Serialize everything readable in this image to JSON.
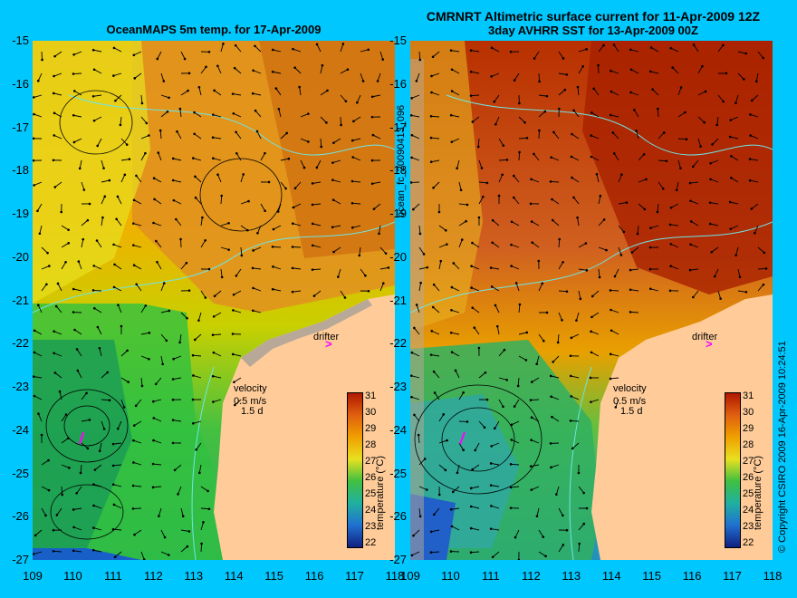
{
  "left_panel": {
    "title": "OceanMAPS 5m temp. for 17-Apr-2009",
    "velocity_label": "velocity",
    "velocity_scale": "0.5 m/s",
    "velocity_time": "1.5 d",
    "drifter_label": "drifter",
    "colorbar_label": "temperature (°C)"
  },
  "right_panel": {
    "title_line1": "CMRNRT Altimetric surface current for 11-Apr-2009 12Z",
    "title_line2": "3day AVHRR SST for 13-Apr-2009 00Z",
    "velocity_label": "velocity",
    "velocity_scale": "0.5 m/s",
    "velocity_time": "1.5 d",
    "drifter_label": "drifter",
    "colorbar_label": "temperature (°C)"
  },
  "side_label": "ocean_fc_20090413_096",
  "copyright": "© Copyright CSIRO 2009   16-Apr-2009 10:24:51",
  "colors": {
    "background": "#00c8ff",
    "land": "#ffcc99",
    "coast_grey": "#b8a898",
    "drifter": "#ff00ff",
    "bathymetry": "#6ee6e6"
  },
  "chart_data": {
    "type": "heatmap",
    "y_ticks": [
      "-15",
      "-16",
      "-17",
      "-18",
      "-19",
      "-20",
      "-21",
      "-22",
      "-23",
      "-24",
      "-25",
      "-26",
      "-27"
    ],
    "x_ticks": [
      "109",
      "110",
      "111",
      "112",
      "113",
      "114",
      "115",
      "116",
      "117",
      "118"
    ],
    "colorbar_ticks": [
      "31",
      "30",
      "29",
      "28",
      "27",
      "26",
      "25",
      "24",
      "23",
      "22"
    ],
    "xlim": [
      109,
      118
    ],
    "ylim": [
      -27,
      -15
    ],
    "colorbar_range": [
      21.5,
      31.5
    ]
  }
}
